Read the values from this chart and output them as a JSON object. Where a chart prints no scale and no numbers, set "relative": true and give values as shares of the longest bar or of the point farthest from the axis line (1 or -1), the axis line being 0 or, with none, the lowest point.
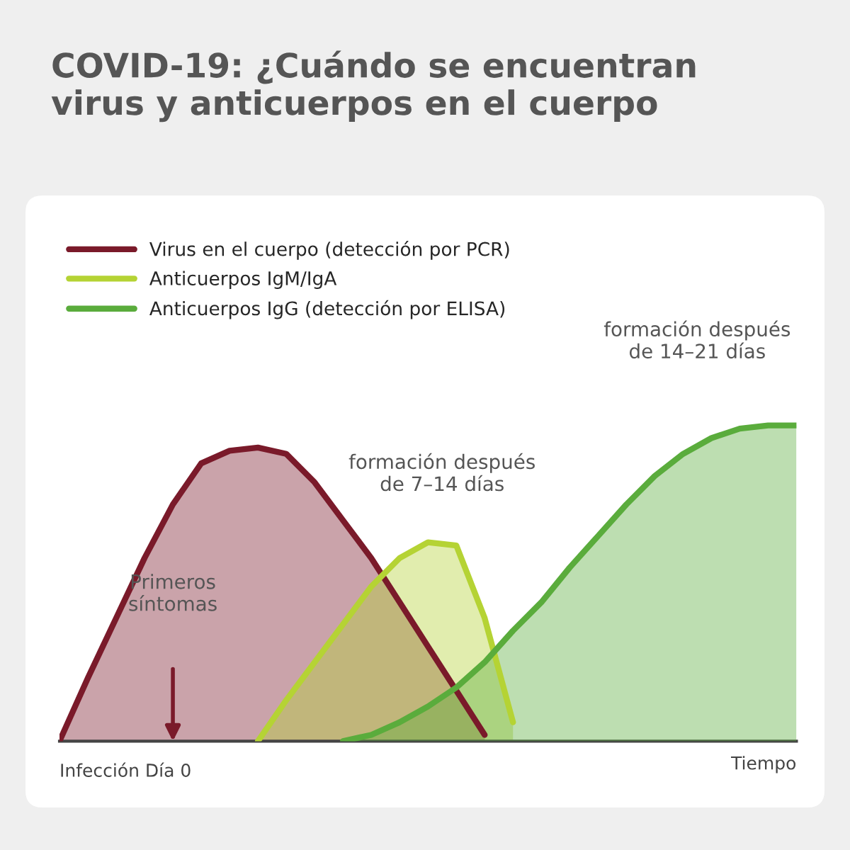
{
  "chart_data": {
    "type": "area",
    "relative": true,
    "title": "COVID-19: ¿Cuándo se encuentran\nvirus y anticuerpos en el cuerpo",
    "xlabel": "Tiempo",
    "categories": [
      null,
      null,
      null,
      null,
      null,
      null,
      null,
      null,
      null,
      null,
      null,
      null,
      null,
      null,
      null,
      null,
      null,
      null,
      null,
      null,
      null,
      null,
      null,
      null,
      null,
      null,
      null
    ],
    "series": [
      {
        "name": "Virus en el cuerpo (detección por PCR)",
        "color": "#7a1a2a",
        "values": [
          0,
          0.2,
          0.39,
          0.58,
          0.75,
          0.88,
          0.92,
          0.93,
          0.91,
          0.82,
          0.7,
          0.58,
          0.44,
          0.3,
          0.16,
          0.02,
          null,
          null,
          null,
          null,
          null,
          null,
          null,
          null,
          null,
          null,
          null
        ]
      },
      {
        "name": "Anticuerpos IgM/IgA",
        "color": "#b5d334",
        "values": [
          null,
          null,
          null,
          null,
          null,
          null,
          null,
          0,
          0.13,
          0.25,
          0.37,
          0.49,
          0.58,
          0.63,
          0.62,
          0.39,
          0.06,
          null,
          null,
          null,
          null,
          null,
          null,
          null,
          null,
          null,
          null
        ]
      },
      {
        "name": "Anticuerpos IgG (detección por ELISA)",
        "color": "#5aac3c",
        "values": [
          null,
          null,
          null,
          null,
          null,
          null,
          null,
          null,
          null,
          null,
          0,
          0.02,
          0.06,
          0.11,
          0.17,
          0.25,
          0.35,
          0.44,
          0.55,
          0.65,
          0.75,
          0.84,
          0.91,
          0.96,
          0.99,
          1.0,
          1.0
        ]
      }
    ],
    "annotations": [
      "Primeros\nsíntomas",
      "formación después\nde 7–14 días",
      "formación después\nde 14–21 días",
      "Infección Día 0"
    ],
    "legend": "top left"
  }
}
